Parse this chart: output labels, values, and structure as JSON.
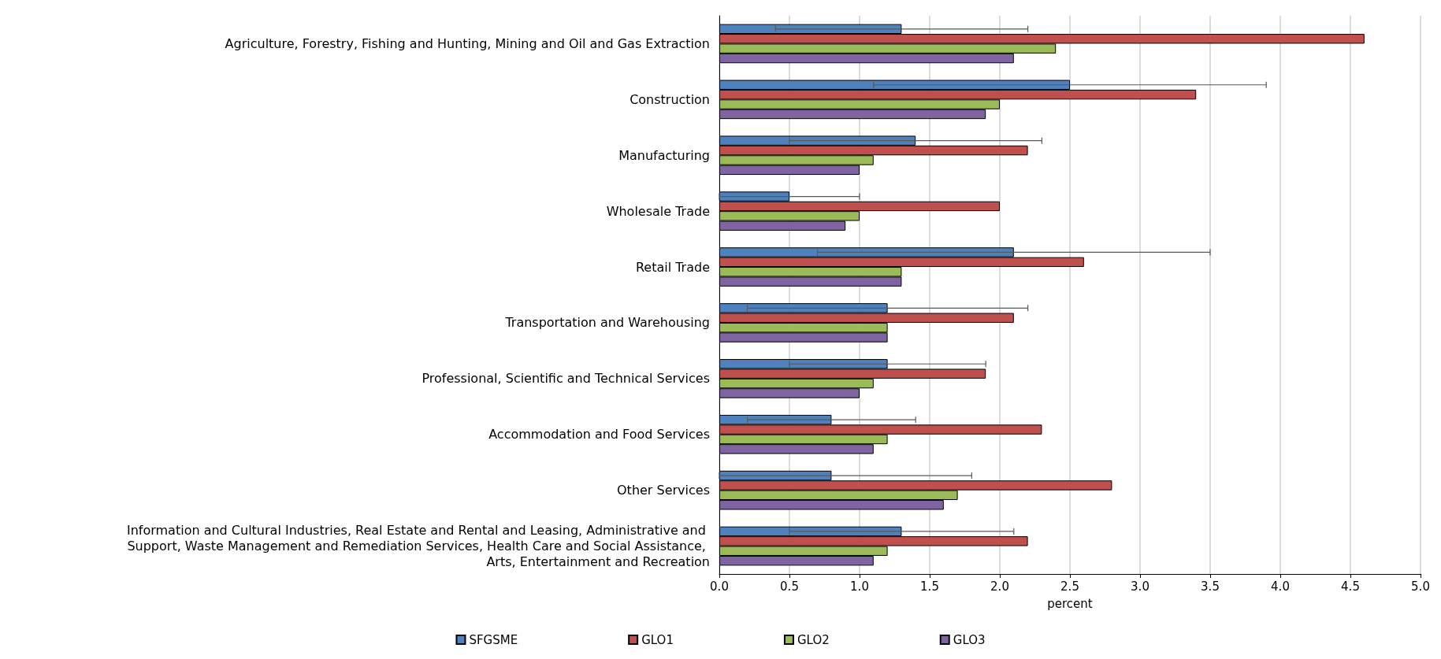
{
  "chart_data": {
    "type": "bar",
    "orientation": "horizontal",
    "xlabel": "percent",
    "categories": [
      "Agriculture, Forestry, Fishing and Hunting, Mining and Oil and Gas Extraction",
      "Construction",
      "Manufacturing",
      "Wholesale Trade",
      "Retail Trade",
      "Transportation and Warehousing",
      "Professional, Scientific and Technical Services",
      "Accommodation and Food Services",
      "Other Services",
      "Information and Cultural Industries, Real Estate and Rental and Leasing, Administrative and Support, Waste Management and Remediation Services, Health Care and Social Assistance, Arts, Entertainment and Recreation"
    ],
    "series": [
      {
        "name": "SFGSME",
        "color": "#4f81bd",
        "values": [
          1.3,
          2.5,
          1.4,
          0.5,
          2.1,
          1.2,
          1.2,
          0.8,
          0.8,
          1.3
        ],
        "errors": [
          [
            0.4,
            2.2
          ],
          [
            1.1,
            3.9
          ],
          [
            0.5,
            2.3
          ],
          [
            0,
            1.0
          ],
          [
            0.7,
            3.5
          ],
          [
            0.2,
            2.2
          ],
          [
            0.5,
            1.9
          ],
          [
            0.2,
            1.4
          ],
          [
            0,
            1.8
          ],
          [
            0.5,
            2.1
          ]
        ]
      },
      {
        "name": "GLO1",
        "color": "#c0504d",
        "values": [
          4.6,
          3.4,
          2.2,
          2.0,
          2.6,
          2.1,
          1.9,
          2.3,
          2.8,
          2.2
        ]
      },
      {
        "name": "GLO2",
        "color": "#9bbb59",
        "values": [
          2.4,
          2.0,
          1.1,
          1.0,
          1.3,
          1.2,
          1.1,
          1.2,
          1.7,
          1.2
        ]
      },
      {
        "name": "GLO3",
        "color": "#8064a2",
        "values": [
          2.1,
          1.9,
          1.0,
          0.9,
          1.3,
          1.2,
          1.0,
          1.1,
          1.6,
          1.1
        ]
      }
    ],
    "xlim": [
      0,
      5
    ],
    "xticks": [
      {
        "value": 0,
        "label": "0.0"
      },
      0.5,
      {
        "value": 1,
        "label": "1.0"
      },
      1.5,
      {
        "value": 2,
        "label": "2.0"
      },
      2.5,
      {
        "value": 3,
        "label": "3.0"
      },
      3.5,
      {
        "value": 4,
        "label": "4.0"
      },
      4.5,
      {
        "value": 5,
        "label": "5.0"
      }
    ],
    "grid": "x",
    "legend": "bottom"
  }
}
